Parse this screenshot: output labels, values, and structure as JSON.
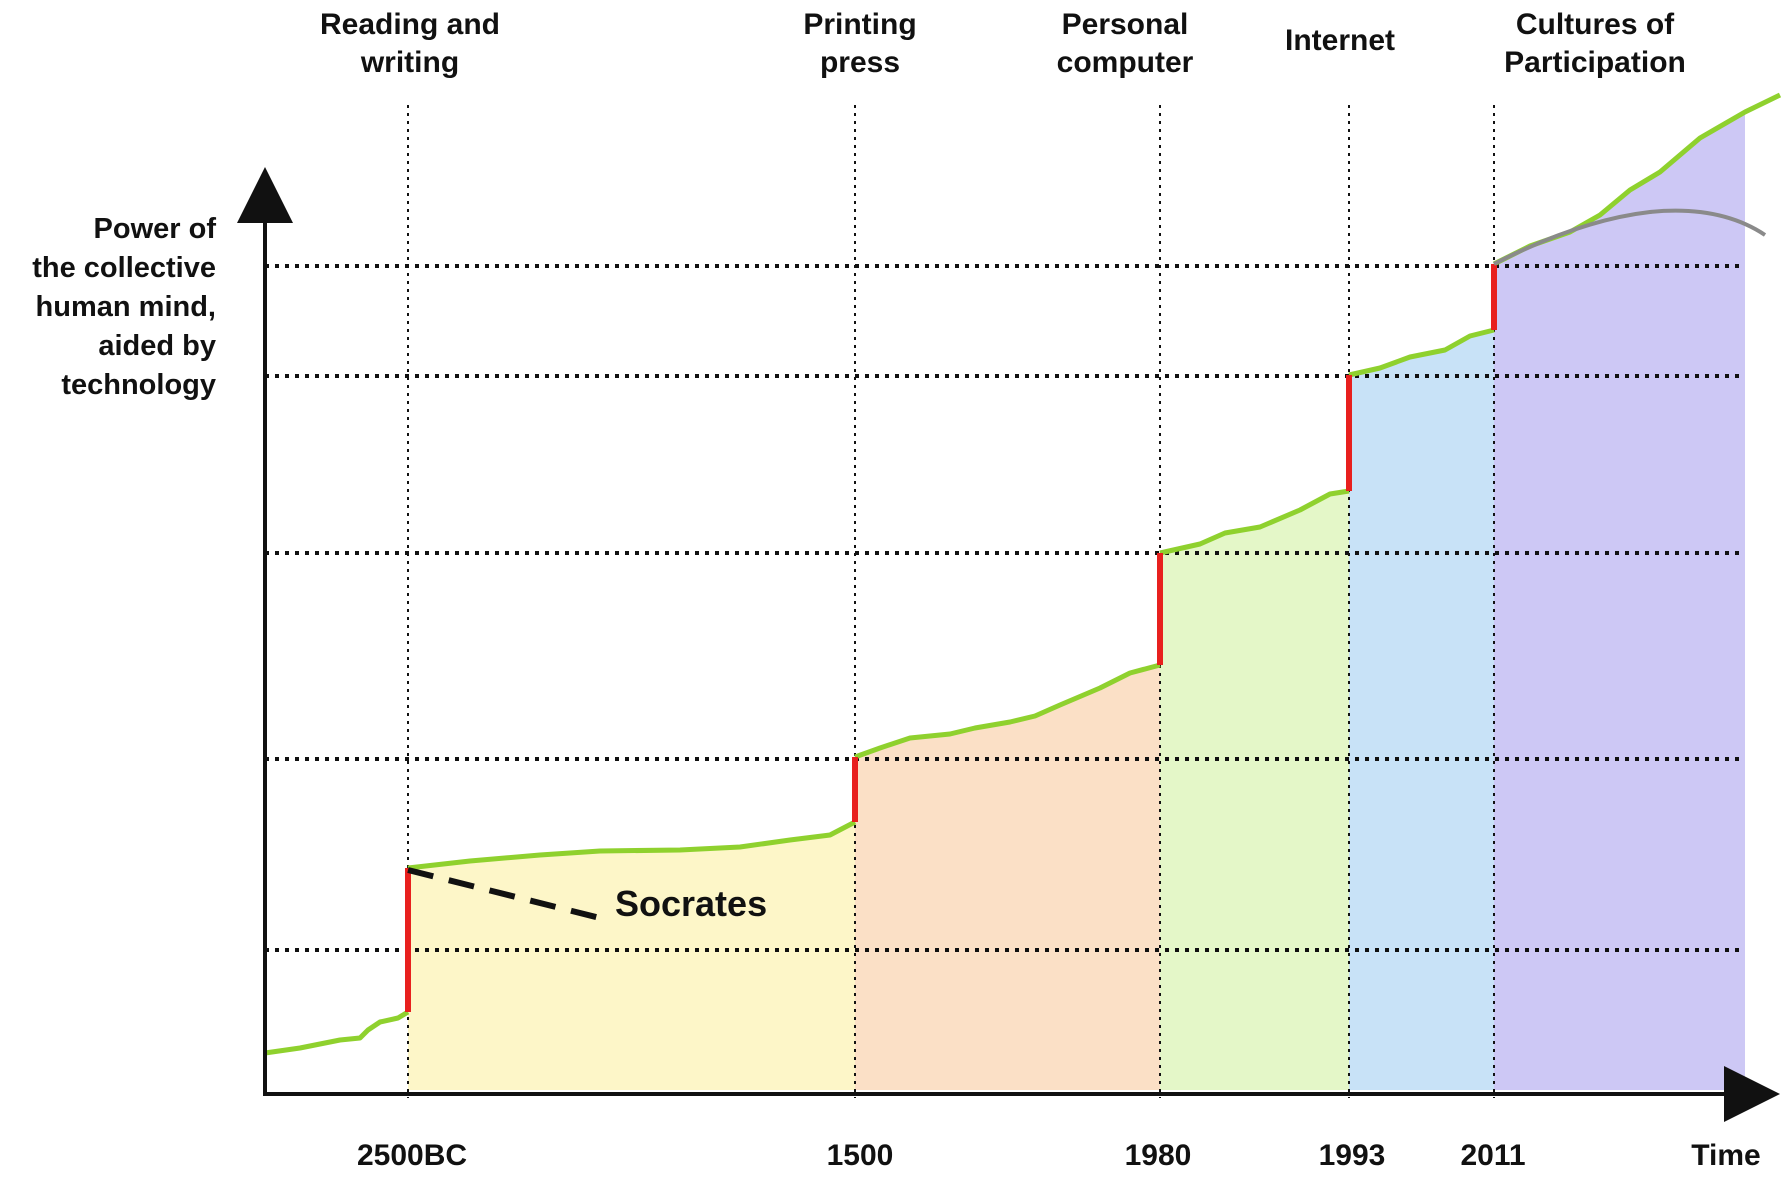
{
  "chart_data": {
    "type": "area",
    "ylabel": "Power of\nthe collective\nhuman mind,\naided by\ntechnology",
    "xlabel": "Time",
    "x_ticks": [
      "2500BC",
      "1500",
      "1980",
      "1993",
      "2011"
    ],
    "eras": [
      {
        "label": "Reading and\nwriting",
        "year": "2500BC",
        "fill": "#fdf6c8"
      },
      {
        "label": "Printing\npress",
        "year": "1500",
        "fill": "#fbe0c6"
      },
      {
        "label": "Personal\ncomputer",
        "year": "1980",
        "fill": "#e4f7c8"
      },
      {
        "label": "Internet",
        "year": "1993",
        "fill": "#c8e2f7"
      },
      {
        "label": "Cultures of\nParticipation",
        "year": "2011",
        "fill": "#cdc8f5"
      }
    ],
    "annotation": "Socrates",
    "colors": {
      "curve": "#8fd12e",
      "jump": "#e8201e",
      "alt_curve": "#8a8a8a",
      "gridline": "#111111",
      "axis": "#111111"
    },
    "grid": true,
    "dotted_gridlines": true
  }
}
